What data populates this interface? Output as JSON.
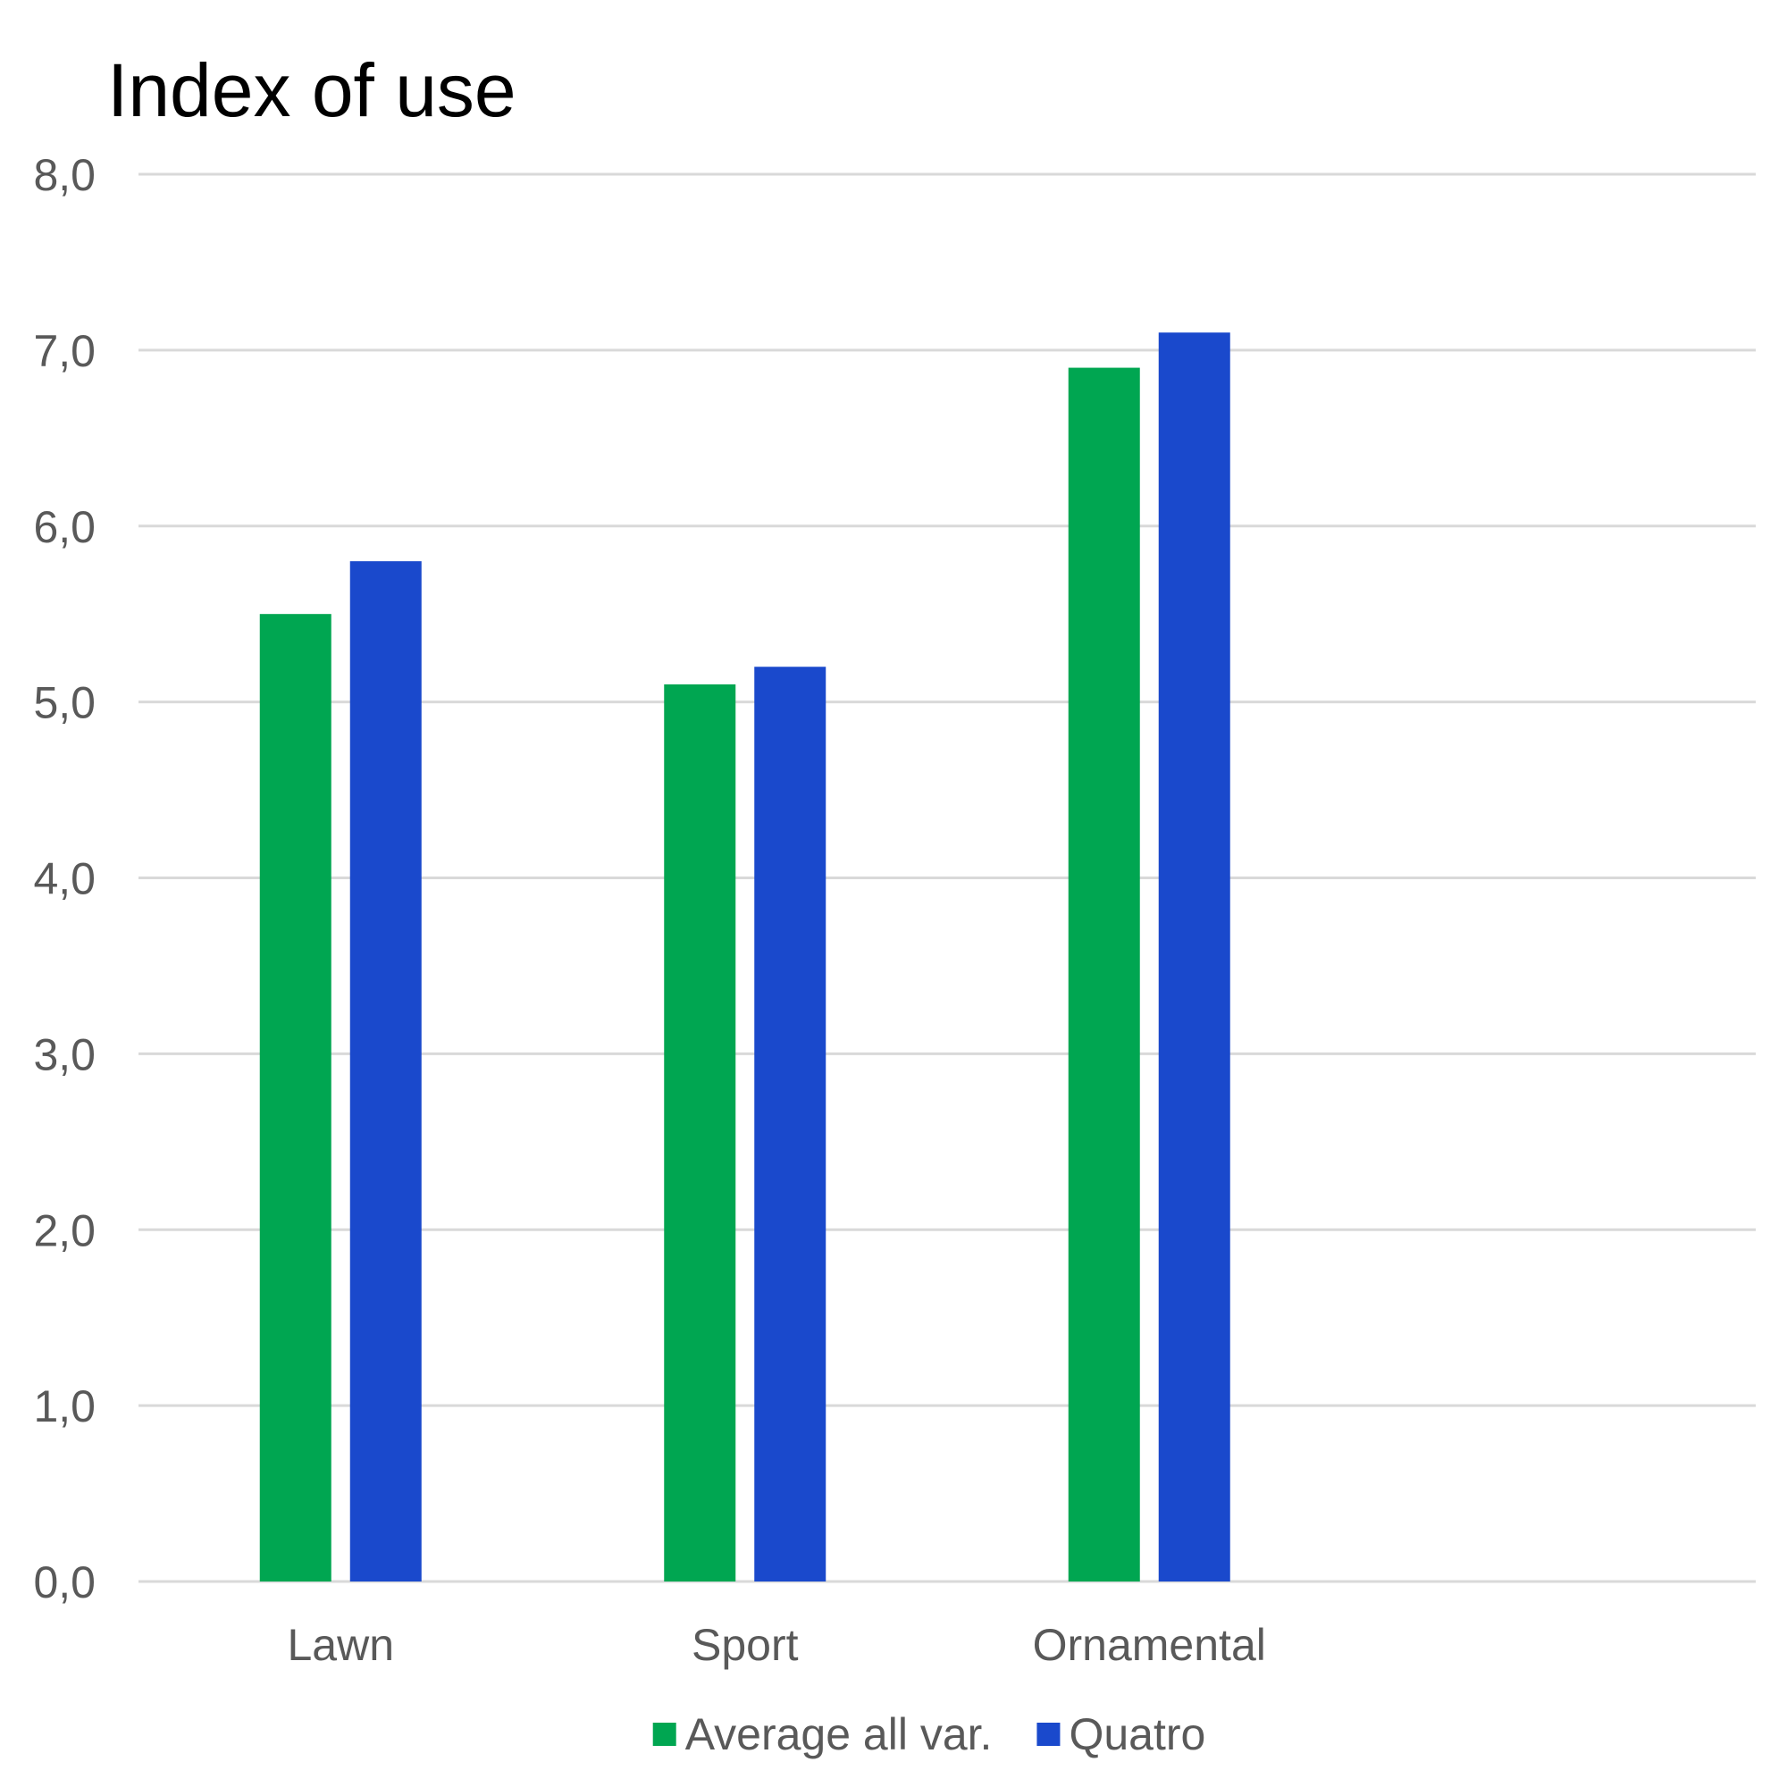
{
  "chart_data": {
    "type": "bar",
    "title": "Index of use",
    "xlabel": "",
    "ylabel": "",
    "categories": [
      "Lawn",
      "Sport",
      "Ornamental",
      ""
    ],
    "series": [
      {
        "name": "Average all var.",
        "color": "#00a651",
        "values": [
          5.5,
          5.1,
          6.9,
          null
        ]
      },
      {
        "name": "Quatro",
        "color": "#1a49cc",
        "values": [
          5.8,
          5.2,
          7.1,
          null
        ]
      }
    ],
    "ylim": [
      0,
      8
    ],
    "yticks": [
      "0,0",
      "1,0",
      "2,0",
      "3,0",
      "4,0",
      "5,0",
      "6,0",
      "7,0",
      "8,0"
    ],
    "grid": true,
    "legend_position": "bottom"
  }
}
